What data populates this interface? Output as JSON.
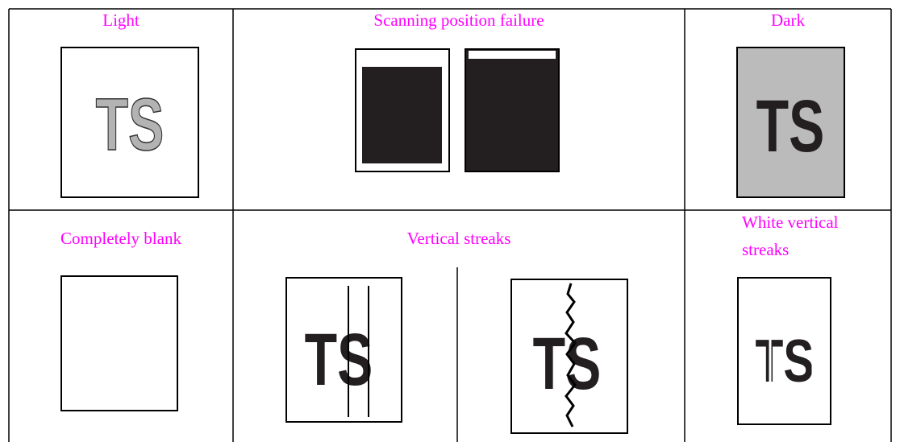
{
  "cells": [
    {
      "label": "Light"
    },
    {
      "label": "Scanning position failure"
    },
    {
      "label": "Dark"
    },
    {
      "label": "Completely blank"
    },
    {
      "label": "Vertical streaks"
    },
    {
      "label": "White vertical streaks"
    }
  ],
  "sample_text": "TS"
}
